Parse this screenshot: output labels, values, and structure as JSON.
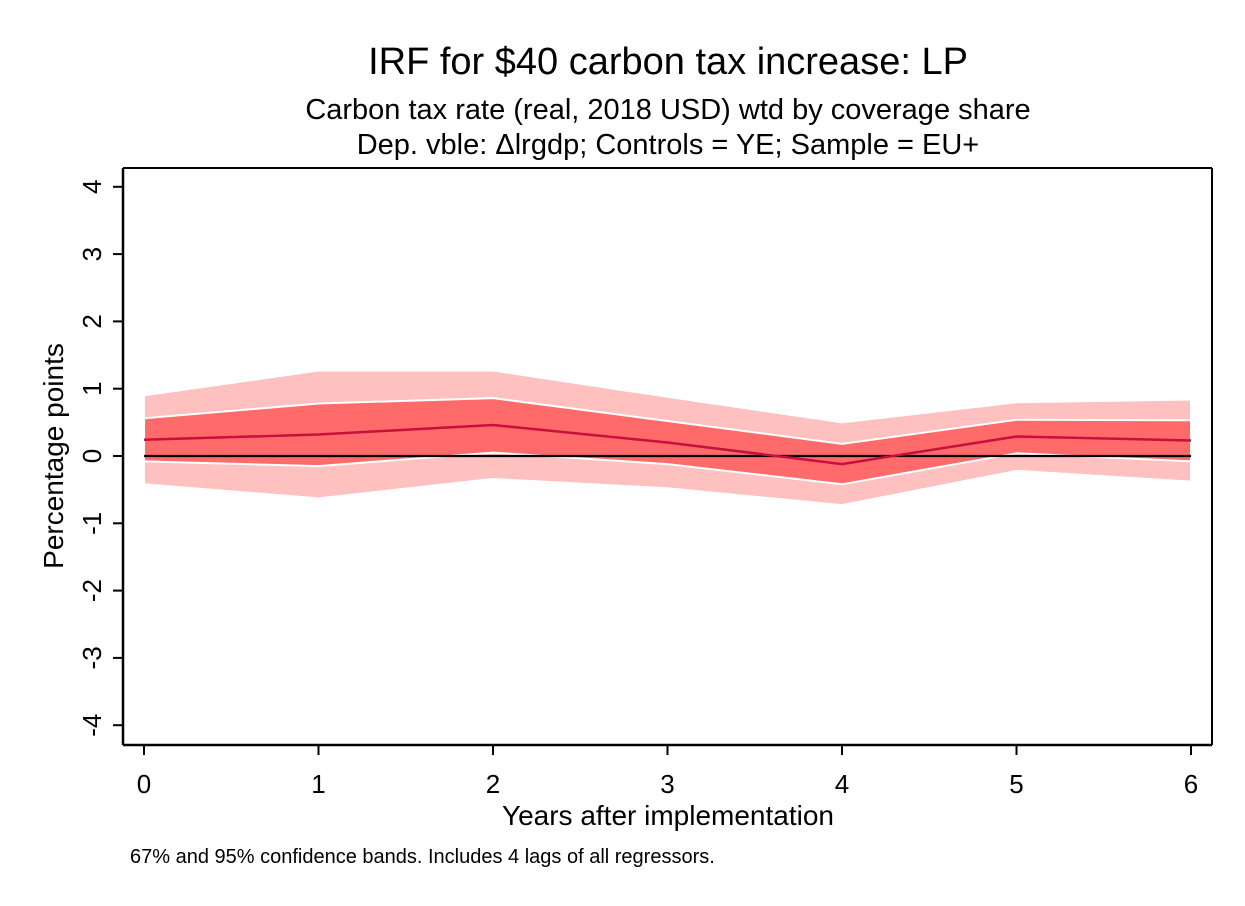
{
  "chart_data": {
    "type": "line",
    "title": "IRF for $40 carbon tax increase: LP",
    "subtitle_lines": [
      "Carbon tax rate (real, 2018 USD) wtd by coverage share",
      "Dep. vble: Δlrgdp; Controls = YE; Sample = EU+"
    ],
    "xlabel": "Years after implementation",
    "ylabel": "Percentage points",
    "note": "67% and 95% confidence bands. Includes 4 lags of all regressors.",
    "x": [
      0,
      1,
      2,
      3,
      4,
      5,
      6
    ],
    "xticks": [
      "0",
      "1",
      "2",
      "3",
      "4",
      "5",
      "6"
    ],
    "yticks": [
      "-4",
      "-3",
      "-2",
      "-1",
      "0",
      "1",
      "2",
      "3",
      "4"
    ],
    "xlim": [
      0,
      6
    ],
    "ylim": [
      -4,
      4
    ],
    "series": [
      {
        "values": [
          0.24,
          0.32,
          0.46,
          0.2,
          -0.12,
          0.29,
          0.23
        ]
      }
    ],
    "bands": [
      {
        "level": "95%",
        "lower": [
          -0.42,
          -0.63,
          -0.34,
          -0.48,
          -0.73,
          -0.22,
          -0.38
        ],
        "upper": [
          0.9,
          1.27,
          1.27,
          0.88,
          0.5,
          0.8,
          0.84
        ]
      },
      {
        "level": "67%",
        "lower": [
          -0.08,
          -0.15,
          0.05,
          -0.12,
          -0.42,
          0.04,
          -0.08
        ],
        "upper": [
          0.56,
          0.78,
          0.86,
          0.52,
          0.18,
          0.54,
          0.53
        ]
      }
    ],
    "reference_line": 0,
    "grid": false,
    "colors": {
      "band_95": "#ffc0c0",
      "band_67": "#ff6b6b",
      "irf_line": "#c8103c",
      "zero_line": "#000000",
      "axis": "#000000",
      "band_outline": "#ffffff"
    }
  }
}
